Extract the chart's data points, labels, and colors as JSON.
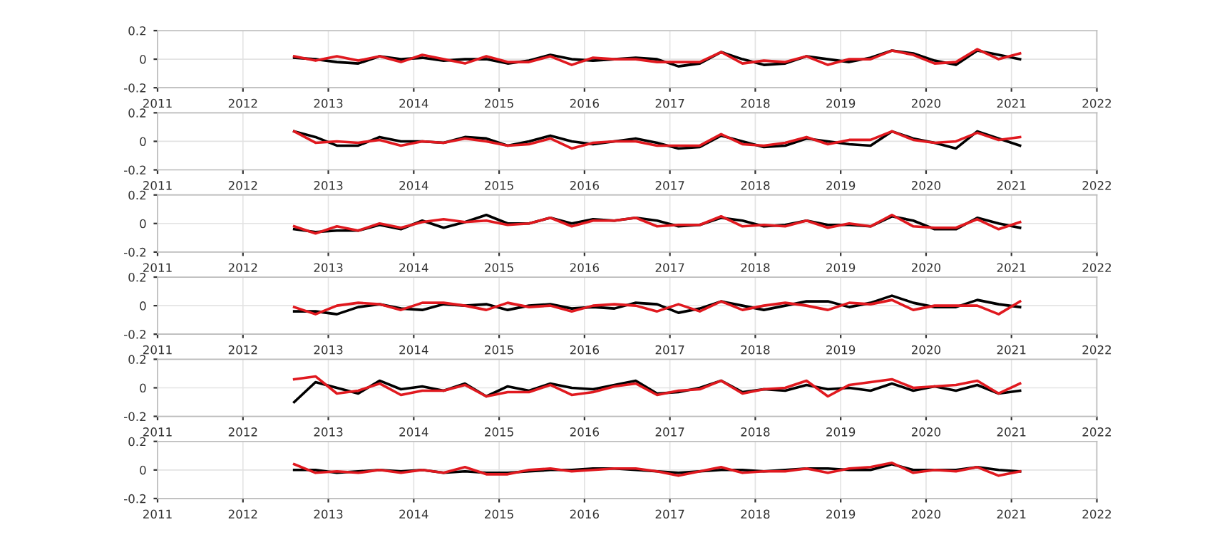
{
  "chart_data": [
    {
      "type": "line",
      "x": [
        2012.6,
        2012.85,
        2013.1,
        2013.35,
        2013.6,
        2013.85,
        2014.1,
        2014.35,
        2014.6,
        2014.85,
        2015.1,
        2015.35,
        2015.6,
        2015.85,
        2016.1,
        2016.35,
        2016.6,
        2016.85,
        2017.1,
        2017.35,
        2017.6,
        2017.85,
        2018.1,
        2018.35,
        2018.6,
        2018.85,
        2019.1,
        2019.35,
        2019.6,
        2019.85,
        2020.1,
        2020.35,
        2020.6,
        2020.85,
        2021.1
      ],
      "xlim": [
        2011,
        2022
      ],
      "xticks": [
        2011,
        2012,
        2013,
        2014,
        2015,
        2016,
        2017,
        2018,
        2019,
        2020,
        2021,
        2022
      ],
      "ylim": [
        -0.2,
        0.2
      ],
      "yticks": [
        -0.2,
        0,
        0.2
      ],
      "grid": true,
      "series": [
        {
          "color": "#000000",
          "values": [
            0.01,
            0.0,
            -0.02,
            -0.03,
            0.02,
            0.0,
            0.01,
            -0.01,
            0.0,
            0.0,
            -0.03,
            -0.01,
            0.03,
            0.0,
            -0.01,
            0.0,
            0.01,
            0.0,
            -0.05,
            -0.03,
            0.05,
            0.0,
            -0.04,
            -0.03,
            0.02,
            0.0,
            -0.02,
            0.01,
            0.06,
            0.04,
            -0.01,
            -0.04,
            0.06,
            0.03,
            0.0
          ]
        },
        {
          "color": "#e0191f",
          "values": [
            0.02,
            -0.01,
            0.02,
            -0.01,
            0.02,
            -0.02,
            0.03,
            0.0,
            -0.03,
            0.02,
            -0.02,
            -0.02,
            0.02,
            -0.04,
            0.01,
            0.0,
            0.0,
            -0.02,
            -0.02,
            -0.02,
            0.05,
            -0.03,
            -0.01,
            -0.02,
            0.02,
            -0.04,
            0.0,
            0.0,
            0.06,
            0.03,
            -0.03,
            -0.02,
            0.07,
            0.0,
            0.04
          ]
        }
      ]
    },
    {
      "type": "line",
      "x": [
        2012.6,
        2012.85,
        2013.1,
        2013.35,
        2013.6,
        2013.85,
        2014.1,
        2014.35,
        2014.6,
        2014.85,
        2015.1,
        2015.35,
        2015.6,
        2015.85,
        2016.1,
        2016.35,
        2016.6,
        2016.85,
        2017.1,
        2017.35,
        2017.6,
        2017.85,
        2018.1,
        2018.35,
        2018.6,
        2018.85,
        2019.1,
        2019.35,
        2019.6,
        2019.85,
        2020.1,
        2020.35,
        2020.6,
        2020.85,
        2021.1
      ],
      "xlim": [
        2011,
        2022
      ],
      "xticks": [
        2011,
        2012,
        2013,
        2014,
        2015,
        2016,
        2017,
        2018,
        2019,
        2020,
        2021,
        2022
      ],
      "ylim": [
        -0.2,
        0.2
      ],
      "yticks": [
        -0.2,
        0,
        0.2
      ],
      "grid": true,
      "series": [
        {
          "color": "#000000",
          "values": [
            0.07,
            0.03,
            -0.03,
            -0.03,
            0.03,
            0.0,
            0.0,
            -0.01,
            0.03,
            0.02,
            -0.03,
            0.0,
            0.04,
            0.0,
            -0.02,
            0.0,
            0.02,
            -0.01,
            -0.05,
            -0.04,
            0.04,
            0.0,
            -0.04,
            -0.03,
            0.02,
            0.0,
            -0.02,
            -0.03,
            0.07,
            0.02,
            -0.01,
            -0.05,
            0.07,
            0.02,
            -0.03
          ]
        },
        {
          "color": "#e0191f",
          "values": [
            0.07,
            -0.01,
            0.0,
            -0.01,
            0.01,
            -0.03,
            0.0,
            -0.01,
            0.02,
            0.0,
            -0.03,
            -0.02,
            0.02,
            -0.05,
            -0.01,
            0.0,
            0.0,
            -0.03,
            -0.03,
            -0.03,
            0.05,
            -0.02,
            -0.03,
            -0.01,
            0.03,
            -0.02,
            0.01,
            0.01,
            0.07,
            0.01,
            -0.01,
            0.0,
            0.06,
            0.01,
            0.03
          ]
        }
      ]
    },
    {
      "type": "line",
      "x": [
        2012.6,
        2012.85,
        2013.1,
        2013.35,
        2013.6,
        2013.85,
        2014.1,
        2014.35,
        2014.6,
        2014.85,
        2015.1,
        2015.35,
        2015.6,
        2015.85,
        2016.1,
        2016.35,
        2016.6,
        2016.85,
        2017.1,
        2017.35,
        2017.6,
        2017.85,
        2018.1,
        2018.35,
        2018.6,
        2018.85,
        2019.1,
        2019.35,
        2019.6,
        2019.85,
        2020.1,
        2020.35,
        2020.6,
        2020.85,
        2021.1
      ],
      "xlim": [
        2011,
        2022
      ],
      "xticks": [
        2011,
        2012,
        2013,
        2014,
        2015,
        2016,
        2017,
        2018,
        2019,
        2020,
        2021,
        2022
      ],
      "ylim": [
        -0.2,
        0.2
      ],
      "yticks": [
        -0.2,
        0,
        0.2
      ],
      "grid": true,
      "series": [
        {
          "color": "#000000",
          "values": [
            -0.04,
            -0.06,
            -0.05,
            -0.05,
            -0.01,
            -0.04,
            0.02,
            -0.03,
            0.01,
            0.06,
            0.0,
            0.0,
            0.04,
            0.0,
            0.03,
            0.02,
            0.04,
            0.02,
            -0.02,
            -0.01,
            0.04,
            0.02,
            -0.02,
            -0.01,
            0.02,
            -0.01,
            -0.01,
            -0.02,
            0.05,
            0.02,
            -0.04,
            -0.04,
            0.04,
            0.0,
            -0.03
          ]
        },
        {
          "color": "#e0191f",
          "values": [
            -0.02,
            -0.07,
            -0.02,
            -0.05,
            0.0,
            -0.03,
            0.01,
            0.03,
            0.01,
            0.02,
            -0.01,
            0.0,
            0.04,
            -0.02,
            0.02,
            0.02,
            0.04,
            -0.02,
            -0.01,
            -0.01,
            0.05,
            -0.02,
            -0.01,
            -0.02,
            0.02,
            -0.03,
            0.0,
            -0.02,
            0.06,
            -0.02,
            -0.03,
            -0.03,
            0.03,
            -0.04,
            0.01
          ]
        }
      ]
    },
    {
      "type": "line",
      "x": [
        2012.6,
        2012.85,
        2013.1,
        2013.35,
        2013.6,
        2013.85,
        2014.1,
        2014.35,
        2014.6,
        2014.85,
        2015.1,
        2015.35,
        2015.6,
        2015.85,
        2016.1,
        2016.35,
        2016.6,
        2016.85,
        2017.1,
        2017.35,
        2017.6,
        2017.85,
        2018.1,
        2018.35,
        2018.6,
        2018.85,
        2019.1,
        2019.35,
        2019.6,
        2019.85,
        2020.1,
        2020.35,
        2020.6,
        2020.85,
        2021.1
      ],
      "xlim": [
        2011,
        2022
      ],
      "xticks": [
        2011,
        2012,
        2013,
        2014,
        2015,
        2016,
        2017,
        2018,
        2019,
        2020,
        2021,
        2022
      ],
      "ylim": [
        -0.2,
        0.2
      ],
      "yticks": [
        -0.2,
        0,
        0.2
      ],
      "grid": true,
      "series": [
        {
          "color": "#000000",
          "values": [
            -0.04,
            -0.04,
            -0.06,
            -0.01,
            0.01,
            -0.02,
            -0.03,
            0.01,
            0.0,
            0.01,
            -0.03,
            0.0,
            0.01,
            -0.02,
            -0.01,
            -0.02,
            0.02,
            0.01,
            -0.05,
            -0.02,
            0.03,
            0.0,
            -0.03,
            0.0,
            0.03,
            0.03,
            -0.01,
            0.02,
            0.07,
            0.02,
            -0.01,
            -0.01,
            0.04,
            0.01,
            -0.01
          ]
        },
        {
          "color": "#e0191f",
          "values": [
            -0.01,
            -0.06,
            0.0,
            0.02,
            0.01,
            -0.03,
            0.02,
            0.02,
            0.0,
            -0.03,
            0.02,
            -0.01,
            0.0,
            -0.04,
            0.0,
            0.01,
            0.0,
            -0.04,
            0.01,
            -0.04,
            0.03,
            -0.03,
            0.0,
            0.02,
            0.0,
            -0.03,
            0.02,
            0.01,
            0.04,
            -0.03,
            0.0,
            0.0,
            0.0,
            -0.06,
            0.03
          ]
        }
      ]
    },
    {
      "type": "line",
      "x": [
        2012.6,
        2012.85,
        2013.1,
        2013.35,
        2013.6,
        2013.85,
        2014.1,
        2014.35,
        2014.6,
        2014.85,
        2015.1,
        2015.35,
        2015.6,
        2015.85,
        2016.1,
        2016.35,
        2016.6,
        2016.85,
        2017.1,
        2017.35,
        2017.6,
        2017.85,
        2018.1,
        2018.35,
        2018.6,
        2018.85,
        2019.1,
        2019.35,
        2019.6,
        2019.85,
        2020.1,
        2020.35,
        2020.6,
        2020.85,
        2021.1
      ],
      "xlim": [
        2011,
        2022
      ],
      "xticks": [
        2011,
        2012,
        2013,
        2014,
        2015,
        2016,
        2017,
        2018,
        2019,
        2020,
        2021,
        2022
      ],
      "ylim": [
        -0.2,
        0.2
      ],
      "yticks": [
        -0.2,
        0,
        0.2
      ],
      "grid": true,
      "series": [
        {
          "color": "#000000",
          "values": [
            -0.1,
            0.04,
            0.0,
            -0.04,
            0.05,
            -0.01,
            0.01,
            -0.02,
            0.03,
            -0.06,
            0.01,
            -0.02,
            0.03,
            0.0,
            -0.01,
            0.02,
            0.05,
            -0.04,
            -0.03,
            0.0,
            0.05,
            -0.03,
            -0.01,
            -0.02,
            0.02,
            -0.01,
            0.0,
            -0.02,
            0.03,
            -0.02,
            0.01,
            -0.02,
            0.02,
            -0.04,
            -0.02
          ]
        },
        {
          "color": "#e0191f",
          "values": [
            0.06,
            0.08,
            -0.04,
            -0.02,
            0.03,
            -0.05,
            -0.02,
            -0.02,
            0.02,
            -0.06,
            -0.03,
            -0.03,
            0.02,
            -0.05,
            -0.03,
            0.01,
            0.03,
            -0.05,
            -0.02,
            -0.01,
            0.05,
            -0.04,
            -0.01,
            0.0,
            0.05,
            -0.06,
            0.02,
            0.04,
            0.06,
            0.0,
            0.01,
            0.02,
            0.05,
            -0.04,
            0.03
          ]
        }
      ]
    },
    {
      "type": "line",
      "x": [
        2012.6,
        2012.85,
        2013.1,
        2013.35,
        2013.6,
        2013.85,
        2014.1,
        2014.35,
        2014.6,
        2014.85,
        2015.1,
        2015.35,
        2015.6,
        2015.85,
        2016.1,
        2016.35,
        2016.6,
        2016.85,
        2017.1,
        2017.35,
        2017.6,
        2017.85,
        2018.1,
        2018.35,
        2018.6,
        2018.85,
        2019.1,
        2019.35,
        2019.6,
        2019.85,
        2020.1,
        2020.35,
        2020.6,
        2020.85,
        2021.1
      ],
      "xlim": [
        2011,
        2022
      ],
      "xticks": [
        2011,
        2012,
        2013,
        2014,
        2015,
        2016,
        2017,
        2018,
        2019,
        2020,
        2021,
        2022
      ],
      "ylim": [
        -0.2,
        0.2
      ],
      "yticks": [
        -0.2,
        0,
        0.2
      ],
      "grid": true,
      "series": [
        {
          "color": "#000000",
          "values": [
            0.0,
            0.0,
            -0.02,
            -0.01,
            0.0,
            -0.01,
            0.0,
            -0.02,
            -0.01,
            -0.02,
            -0.02,
            -0.01,
            0.0,
            0.0,
            0.01,
            0.01,
            0.0,
            -0.01,
            -0.02,
            -0.01,
            0.0,
            0.0,
            -0.01,
            0.0,
            0.01,
            0.01,
            0.0,
            0.0,
            0.04,
            0.0,
            0.0,
            0.0,
            0.02,
            0.0,
            -0.01
          ]
        },
        {
          "color": "#e0191f",
          "values": [
            0.04,
            -0.02,
            -0.01,
            -0.02,
            0.0,
            -0.02,
            0.0,
            -0.02,
            0.02,
            -0.03,
            -0.03,
            0.0,
            0.01,
            -0.01,
            0.0,
            0.01,
            0.01,
            -0.01,
            -0.04,
            -0.01,
            0.02,
            -0.02,
            -0.01,
            -0.01,
            0.01,
            -0.02,
            0.01,
            0.02,
            0.05,
            -0.02,
            0.0,
            -0.01,
            0.02,
            -0.04,
            -0.01
          ]
        }
      ]
    }
  ]
}
